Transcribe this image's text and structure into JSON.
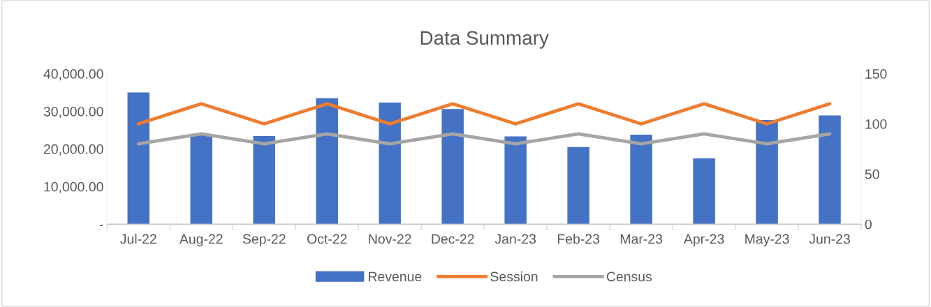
{
  "chart_data": {
    "type": "bar",
    "title": "Data Summary",
    "categories": [
      "Jul-22",
      "Aug-22",
      "Sep-22",
      "Oct-22",
      "Nov-22",
      "Dec-22",
      "Jan-23",
      "Feb-23",
      "Mar-23",
      "Apr-23",
      "May-23",
      "Jun-23"
    ],
    "series": [
      {
        "name": "Revenue",
        "color": "#4472c4",
        "values": [
          35000,
          23600,
          23400,
          33500,
          32300,
          30600,
          23300,
          20500,
          23800,
          17500,
          27700,
          28900
        ]
      },
      {
        "name": "Session",
        "type": "line",
        "axis": "y2",
        "color": "#ed7d31",
        "values": [
          100,
          120,
          100,
          120,
          100,
          120,
          100,
          120,
          100,
          120,
          100,
          120
        ]
      },
      {
        "name": "Census",
        "type": "line",
        "axis": "y2",
        "color": "#a5a5a5",
        "values": [
          80,
          90,
          80,
          90,
          80,
          90,
          80,
          90,
          80,
          90,
          80,
          90
        ]
      }
    ],
    "ylim": [
      0,
      40000
    ],
    "yticks": [
      {
        "value": 0,
        "label": "-"
      },
      {
        "value": 10000,
        "label": "10,000.00"
      },
      {
        "value": 20000,
        "label": "20,000.00"
      },
      {
        "value": 30000,
        "label": "30,000.00"
      },
      {
        "value": 40000,
        "label": "40,000.00"
      }
    ],
    "y2lim": [
      0,
      150
    ],
    "y2ticks": [
      0,
      50,
      100,
      150
    ],
    "grid": false,
    "legend": "bottom",
    "marker": "none"
  }
}
